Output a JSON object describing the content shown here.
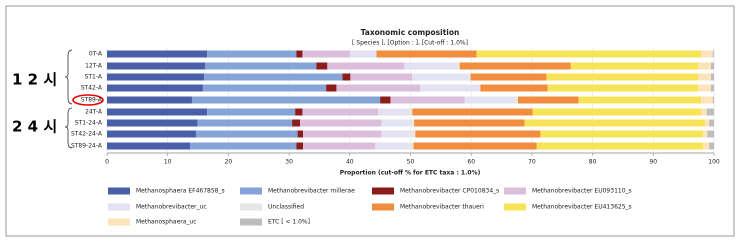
{
  "chart_data": {
    "type": "stacked-bar-horizontal",
    "title": "Taxonomic composition",
    "subtitle": "[ Species ], [Option : ], [Cut-off : 1.0%]",
    "x_label": "Proportion (cut-off % for ETC taxa : 1.0%)",
    "annotations": [
      "1 2 시",
      "2 4 시"
    ],
    "categories": [
      "0T-A",
      "12T-A",
      "ST1-A",
      "ST42-A",
      "ST89-A",
      "24T-A",
      "ST1-24-A",
      "ST42-24-A",
      "ST89-24-A"
    ],
    "xlim": [
      0,
      100
    ],
    "xticks": [
      0,
      10,
      20,
      30,
      40,
      50,
      60,
      70,
      80,
      90,
      100
    ],
    "grid": true,
    "series": [
      {
        "name": "Methanosphaera EF467858_s",
        "color": "#4a5fa8",
        "values": [
          16.5,
          16.2,
          16.0,
          15.8,
          14.0,
          16.5,
          14.9,
          14.7,
          13.7
        ]
      },
      {
        "name": "Methanobrevibacter millerae",
        "color": "#85a3d6",
        "values": [
          14.7,
          18.3,
          22.8,
          20.3,
          31.0,
          14.5,
          15.6,
          16.7,
          17.5
        ]
      },
      {
        "name": "Methanobrevibacter CP010834_s",
        "color": "#8b1c1c",
        "values": [
          1.0,
          1.8,
          1.3,
          1.7,
          1.7,
          1.2,
          1.3,
          0.9,
          1.1
        ]
      },
      {
        "name": "Methanobrevibacter EU093110_s",
        "color": "#dbbedb",
        "values": [
          7.8,
          12.7,
          10.2,
          13.8,
          12.2,
          12.5,
          13.4,
          12.9,
          11.9
        ]
      },
      {
        "name": "Methanobrevibacter_uc",
        "color": "#e2e2f2",
        "values": [
          4.4,
          8.4,
          9.3,
          9.6,
          8.1,
          4.6,
          4.4,
          4.6,
          5.4
        ]
      },
      {
        "name": "Unclassified",
        "color": "#e6e6e6",
        "values": [
          0,
          0.7,
          0.3,
          0.3,
          0.7,
          1.0,
          1.0,
          1.0,
          0.9
        ]
      },
      {
        "name": "Methanobrevibacter thaueri",
        "color": "#f28d3e",
        "values": [
          16.5,
          18.3,
          12.5,
          11.1,
          10.0,
          19.8,
          18.2,
          20.6,
          20.3
        ]
      },
      {
        "name": "Methanobrevibacter EU413625_s",
        "color": "#f6e456",
        "values": [
          37.0,
          21.0,
          25.0,
          24.8,
          20.2,
          27.8,
          29.7,
          26.8,
          27.4
        ]
      },
      {
        "name": "Methanosphaera_uc",
        "color": "#fce4ba",
        "values": [
          1.9,
          2.1,
          2.1,
          2.1,
          1.9,
          0.9,
          0.7,
          0.7,
          1.0
        ]
      },
      {
        "name": "ETC [ < 1.0%]",
        "color": "#bdbdbd",
        "values": [
          0.2,
          0.5,
          0.5,
          0.5,
          0.2,
          1.2,
          0.8,
          1.1,
          0.8
        ]
      }
    ]
  }
}
